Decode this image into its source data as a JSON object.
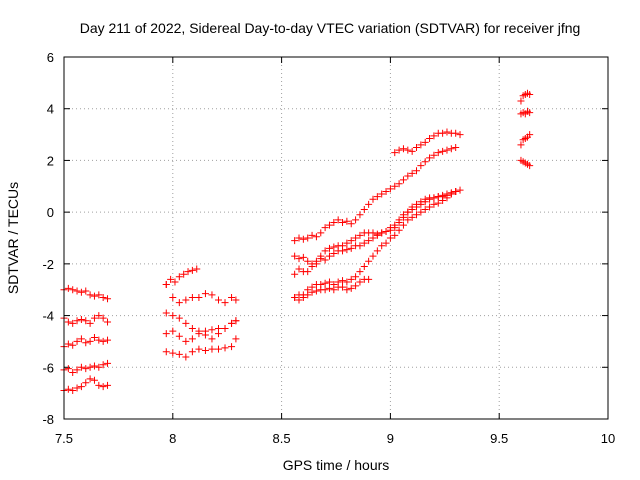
{
  "chart_data": {
    "type": "scatter",
    "title": "Day 211 of 2022, Sidereal Day-to-day VTEC variation (SDTVAR) for receiver jfng",
    "xlabel": "GPS time / hours",
    "ylabel": "SDTVAR / TECUs",
    "xlim": [
      7.5,
      10
    ],
    "ylim": [
      -8,
      6
    ],
    "xticks": [
      "7.5",
      "8",
      "8.5",
      "9",
      "9.5",
      "10"
    ],
    "yticks": [
      "-8",
      "-6",
      "-4",
      "-2",
      "0",
      "2",
      "4",
      "6"
    ],
    "grid": true,
    "marker": "+",
    "color": "#ff0000",
    "series": [
      {
        "x": [
          7.5,
          7.52,
          7.54,
          7.56,
          7.58,
          7.6,
          7.62,
          7.64,
          7.66,
          7.68,
          7.7
        ],
        "y": [
          -3.0,
          -2.95,
          -3.0,
          -3.05,
          -3.1,
          -3.05,
          -3.2,
          -3.25,
          -3.2,
          -3.3,
          -3.35
        ]
      },
      {
        "x": [
          7.5,
          7.52,
          7.54,
          7.56,
          7.58,
          7.6,
          7.62,
          7.64,
          7.66,
          7.68,
          7.7
        ],
        "y": [
          -4.1,
          -4.25,
          -4.3,
          -4.2,
          -4.15,
          -4.2,
          -4.3,
          -4.1,
          -4.0,
          -4.1,
          -4.25
        ]
      },
      {
        "x": [
          7.5,
          7.52,
          7.54,
          7.56,
          7.58,
          7.6,
          7.62,
          7.64,
          7.66,
          7.68,
          7.7
        ],
        "y": [
          -5.2,
          -5.1,
          -5.15,
          -5.0,
          -4.9,
          -5.05,
          -5.0,
          -4.85,
          -4.95,
          -5.0,
          -4.95
        ]
      },
      {
        "x": [
          7.5,
          7.52,
          7.54,
          7.56,
          7.58,
          7.6,
          7.62,
          7.64,
          7.66,
          7.68,
          7.7
        ],
        "y": [
          -6.1,
          -6.05,
          -6.2,
          -6.1,
          -6.0,
          -6.05,
          -6.0,
          -5.95,
          -6.0,
          -5.9,
          -5.85
        ]
      },
      {
        "x": [
          7.5,
          7.52,
          7.54,
          7.56,
          7.58,
          7.6,
          7.62,
          7.64,
          7.66,
          7.68,
          7.7
        ],
        "y": [
          -6.9,
          -6.85,
          -6.9,
          -6.8,
          -6.75,
          -6.6,
          -6.45,
          -6.5,
          -6.7,
          -6.75,
          -6.7
        ]
      },
      {
        "x": [
          7.97,
          7.99,
          8.01,
          8.03,
          8.05,
          8.07,
          8.09,
          8.11
        ],
        "y": [
          -2.8,
          -2.6,
          -2.7,
          -2.5,
          -2.4,
          -2.3,
          -2.25,
          -2.2
        ]
      },
      {
        "x": [
          7.97,
          8.0,
          8.03,
          8.06,
          8.09,
          8.12,
          8.15,
          8.18,
          8.21,
          8.24,
          8.27,
          8.29
        ],
        "y": [
          -2.8,
          -3.3,
          -3.5,
          -3.4,
          -3.3,
          -3.3,
          -3.15,
          -3.2,
          -3.4,
          -3.5,
          -3.3,
          -3.4
        ]
      },
      {
        "x": [
          7.97,
          8.0,
          8.03,
          8.06,
          8.09,
          8.12,
          8.15,
          8.18,
          8.21,
          8.24,
          8.27,
          8.29
        ],
        "y": [
          -3.9,
          -4.0,
          -4.1,
          -4.3,
          -4.5,
          -4.6,
          -4.6,
          -4.55,
          -4.5,
          -4.5,
          -4.3,
          -4.2
        ]
      },
      {
        "x": [
          7.97,
          8.0,
          8.03,
          8.06,
          8.09,
          8.12,
          8.15,
          8.18,
          8.21,
          8.24,
          8.27,
          8.29
        ],
        "y": [
          -4.7,
          -4.6,
          -4.8,
          -5.0,
          -4.9,
          -4.7,
          -4.75,
          -4.9,
          -4.7,
          -4.5,
          -4.3,
          -4.2
        ]
      },
      {
        "x": [
          7.97,
          8.0,
          8.03,
          8.06,
          8.09,
          8.12,
          8.15,
          8.18,
          8.21,
          8.24,
          8.27,
          8.29
        ],
        "y": [
          -5.4,
          -5.45,
          -5.5,
          -5.6,
          -5.4,
          -5.3,
          -5.35,
          -5.3,
          -5.3,
          -5.25,
          -5.2,
          -4.9
        ]
      },
      {
        "x": [
          8.56,
          8.58,
          8.6,
          8.62,
          8.64,
          8.66,
          8.68,
          8.7,
          8.72,
          8.74,
          8.76,
          8.78,
          8.8,
          8.82,
          8.84,
          8.86,
          8.88,
          8.9,
          8.92,
          8.94,
          8.96,
          8.98,
          9.0,
          9.02,
          9.04,
          9.06,
          9.08,
          9.1,
          9.12,
          9.14,
          9.16,
          9.18,
          9.2,
          9.22,
          9.24,
          9.26,
          9.28,
          9.3
        ],
        "y": [
          -1.1,
          -1.0,
          -1.05,
          -1.0,
          -0.9,
          -0.95,
          -0.8,
          -0.6,
          -0.5,
          -0.4,
          -0.3,
          -0.4,
          -0.35,
          -0.45,
          -0.3,
          -0.1,
          0.1,
          0.3,
          0.5,
          0.6,
          0.7,
          0.8,
          0.9,
          1.0,
          1.1,
          1.25,
          1.4,
          1.5,
          1.6,
          1.8,
          1.95,
          2.1,
          2.2,
          2.3,
          2.35,
          2.4,
          2.45,
          2.5
        ]
      },
      {
        "x": [
          9.02,
          9.04,
          9.06,
          9.08,
          9.1,
          9.12,
          9.14,
          9.16,
          9.18,
          9.2,
          9.22,
          9.24,
          9.26,
          9.28,
          9.3,
          9.32
        ],
        "y": [
          2.3,
          2.4,
          2.45,
          2.4,
          2.35,
          2.5,
          2.6,
          2.7,
          2.85,
          2.95,
          3.05,
          3.05,
          3.1,
          3.05,
          3.05,
          3.0
        ]
      },
      {
        "x": [
          8.56,
          8.58,
          8.6,
          8.62,
          8.64,
          8.66,
          8.68,
          8.7,
          8.72,
          8.74,
          8.76,
          8.78,
          8.8,
          8.82,
          8.84,
          8.86,
          8.88,
          8.9,
          8.92,
          8.94,
          8.96,
          8.98,
          9.0,
          9.02,
          9.04,
          9.06,
          9.08,
          9.1,
          9.12,
          9.14,
          9.16,
          9.18,
          9.2,
          9.22,
          9.24,
          9.26,
          9.28,
          9.3,
          9.32
        ],
        "y": [
          -1.7,
          -1.8,
          -1.75,
          -1.9,
          -2.0,
          -1.9,
          -1.7,
          -1.5,
          -1.4,
          -1.35,
          -1.3,
          -1.3,
          -1.2,
          -1.1,
          -1.0,
          -0.9,
          -0.8,
          -0.8,
          -0.8,
          -0.85,
          -0.8,
          -0.75,
          -0.7,
          -0.6,
          -0.4,
          -0.2,
          0.0,
          0.2,
          0.3,
          0.4,
          0.5,
          0.55,
          0.55,
          0.6,
          0.6,
          0.65,
          0.7,
          0.8,
          0.85
        ]
      },
      {
        "x": [
          8.56,
          8.58,
          8.6,
          8.62,
          8.64,
          8.66,
          8.68,
          8.7,
          8.72,
          8.74,
          8.76,
          8.78,
          8.8,
          8.82,
          8.84,
          8.86,
          8.88,
          8.9,
          8.92,
          8.94,
          8.96,
          8.98,
          9.0,
          9.02,
          9.04,
          9.06,
          9.08,
          9.1,
          9.12,
          9.14,
          9.16,
          9.18,
          9.2,
          9.22,
          9.24,
          9.26,
          9.28,
          9.3
        ],
        "y": [
          -2.4,
          -2.2,
          -2.3,
          -2.3,
          -2.1,
          -2.0,
          -1.8,
          -1.85,
          -1.7,
          -1.6,
          -1.5,
          -1.5,
          -1.45,
          -1.4,
          -1.3,
          -1.3,
          -1.2,
          -1.1,
          -1.0,
          -0.9,
          -0.8,
          -0.75,
          -0.6,
          -0.5,
          -0.3,
          -0.1,
          0.0,
          0.1,
          0.2,
          0.3,
          0.4,
          0.5,
          0.55,
          0.6,
          0.65,
          0.7,
          0.75,
          0.8
        ]
      },
      {
        "x": [
          8.56,
          8.58,
          8.6,
          8.62,
          8.64,
          8.66,
          8.68,
          8.7,
          8.72,
          8.74,
          8.76,
          8.78,
          8.8,
          8.82,
          8.84,
          8.86,
          8.88,
          8.9,
          8.92,
          8.94,
          8.96,
          8.98,
          9.0,
          9.02,
          9.04,
          9.06,
          9.08,
          9.1,
          9.12,
          9.14,
          9.16,
          9.18,
          9.2,
          9.22,
          9.24,
          9.26,
          9.28,
          9.3
        ],
        "y": [
          -3.3,
          -3.4,
          -3.2,
          -3.0,
          -2.9,
          -2.8,
          -2.8,
          -2.75,
          -2.7,
          -2.8,
          -2.7,
          -2.65,
          -2.7,
          -2.6,
          -2.5,
          -2.3,
          -2.1,
          -1.9,
          -1.7,
          -1.5,
          -1.3,
          -1.2,
          -1.0,
          -0.9,
          -0.7,
          -0.5,
          -0.3,
          -0.2,
          -0.1,
          0.0,
          0.1,
          0.2,
          0.3,
          0.35,
          0.45,
          0.55,
          0.7,
          0.8
        ]
      },
      {
        "x": [
          8.56,
          8.58,
          8.6,
          8.62,
          8.64,
          8.66,
          8.68,
          8.7,
          8.72,
          8.74,
          8.76,
          8.78,
          8.8,
          8.82,
          8.84,
          8.86,
          8.88,
          8.9
        ],
        "y": [
          -3.3,
          -3.2,
          -3.3,
          -3.2,
          -3.1,
          -3.05,
          -3.0,
          -3.0,
          -2.95,
          -3.0,
          -2.9,
          -2.9,
          -3.0,
          -2.95,
          -2.85,
          -2.7,
          -2.6,
          -2.6
        ]
      },
      {
        "x": [
          9.6,
          9.61,
          9.62,
          9.63,
          9.64
        ],
        "y": [
          4.3,
          4.5,
          4.55,
          4.6,
          4.55
        ]
      },
      {
        "x": [
          9.6,
          9.61,
          9.62,
          9.63,
          9.64
        ],
        "y": [
          3.8,
          3.85,
          3.8,
          3.9,
          3.85
        ]
      },
      {
        "x": [
          9.6,
          9.61,
          9.62,
          9.63,
          9.64
        ],
        "y": [
          2.6,
          2.8,
          2.85,
          2.9,
          3.0
        ]
      },
      {
        "x": [
          9.6,
          9.61,
          9.62,
          9.63,
          9.64
        ],
        "y": [
          2.0,
          1.95,
          1.9,
          1.85,
          1.8
        ]
      }
    ]
  }
}
